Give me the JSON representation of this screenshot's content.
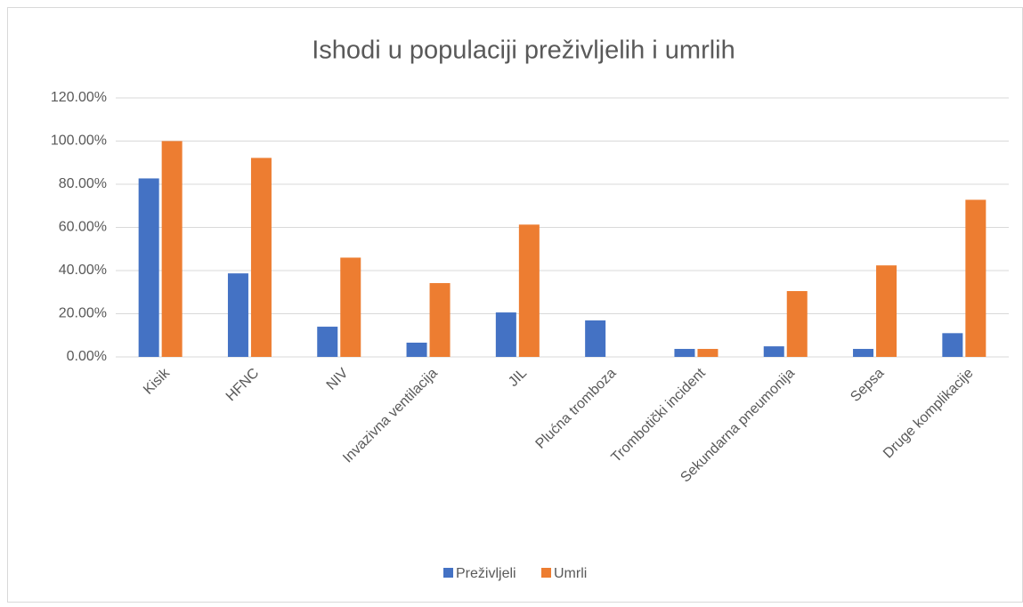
{
  "chart_data": {
    "type": "bar",
    "title": "Ishodi u populaciji preživljelih i umrlih",
    "categories": [
      "Kisik",
      "HFNC",
      "NIV",
      "Invazivna ventilacija",
      "JIL",
      "Plućna tromboza",
      "Trombotički incident",
      "Sekundarna pneumonija",
      "Sepsa",
      "Druge komplikacije"
    ],
    "series": [
      {
        "name": "Preživljeli",
        "color": "#4472c4",
        "values": [
          82.7,
          38.7,
          14,
          6.6,
          20.6,
          16.9,
          3.7,
          4.9,
          3.7,
          11
        ]
      },
      {
        "name": "Umrli",
        "color": "#ed7d31",
        "values": [
          100,
          92.2,
          46,
          34.2,
          61.3,
          0,
          3.7,
          30.5,
          42.4,
          72.8
        ]
      }
    ],
    "ylim": [
      0,
      120
    ],
    "yticks": [
      {
        "value": 0,
        "label": "0.00%"
      },
      {
        "value": 20,
        "label": "20.00%"
      },
      {
        "value": 40,
        "label": "40.00%"
      },
      {
        "value": 60,
        "label": "60.00%"
      },
      {
        "value": 80,
        "label": "80.00%"
      },
      {
        "value": 100,
        "label": "100.00%"
      },
      {
        "value": 120,
        "label": "120.00%"
      }
    ],
    "grid": true,
    "legend": "bottom"
  }
}
